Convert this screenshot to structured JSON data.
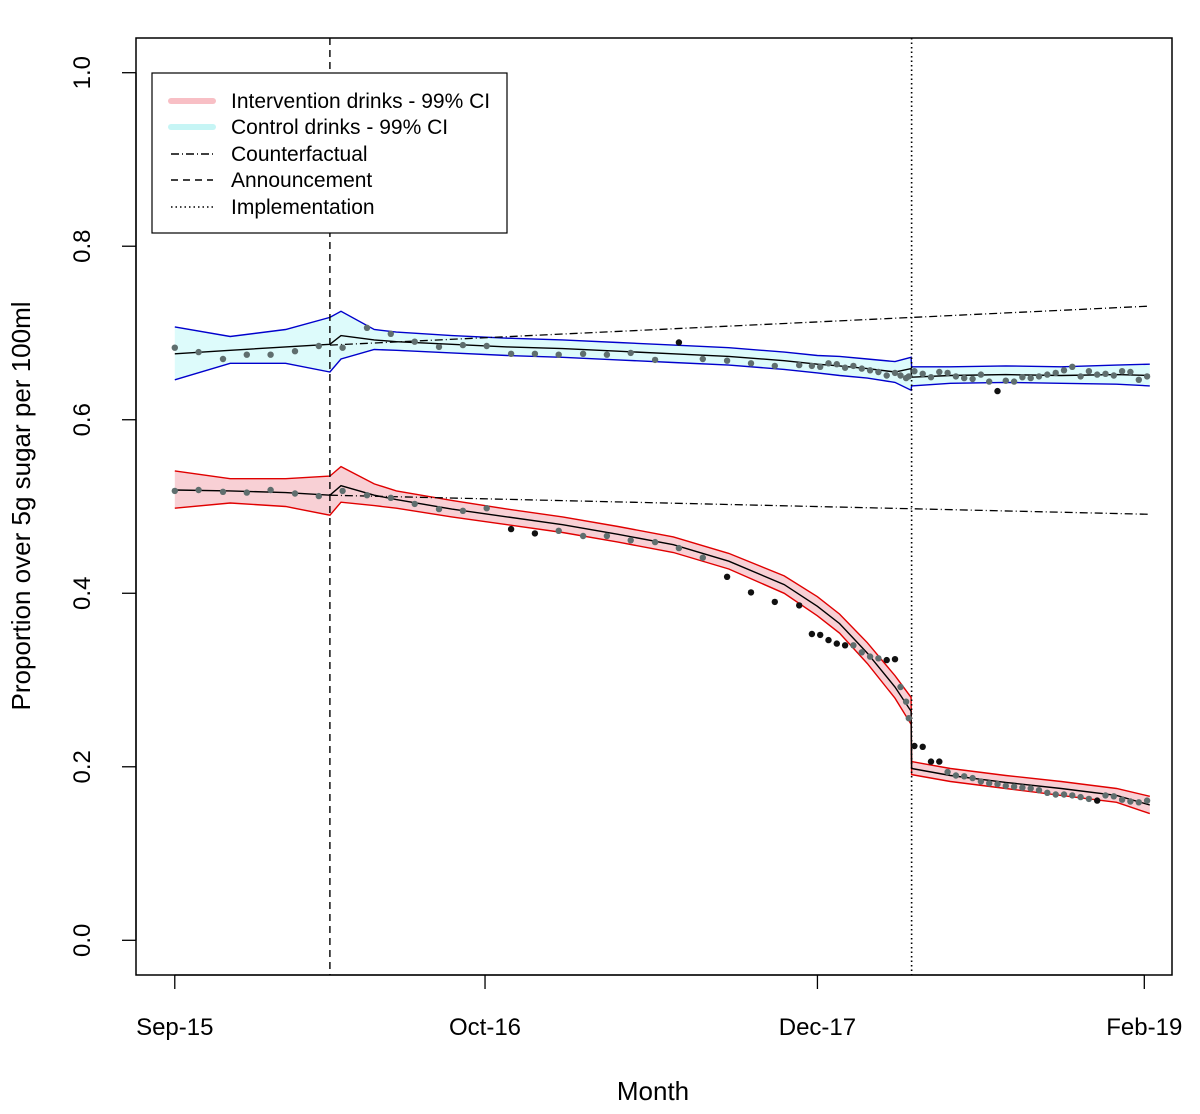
{
  "chart_data": {
    "type": "line",
    "xlabel": "Month",
    "ylabel": "Proportion over 5g sugar per 100ml",
    "x_ticks": [
      "Sep-15",
      "Oct-16",
      "Dec-17",
      "Feb-19"
    ],
    "x_tick_weeks": [
      0,
      56,
      116,
      175
    ],
    "xlim_weeks": [
      -7,
      180
    ],
    "ylim": [
      -0.04,
      1.04
    ],
    "y_ticks": [
      "0.0",
      "0.2",
      "0.4",
      "0.6",
      "0.8",
      "1.0"
    ],
    "y_tick_values": [
      0,
      0.2,
      0.4,
      0.6,
      0.8,
      1.0
    ],
    "announcement_week": 28,
    "implementation_week": 133,
    "legend": {
      "position": "top-left",
      "entries": [
        {
          "label": "Intervention drinks - 99% CI",
          "style": "band",
          "color": "#f8bfc5"
        },
        {
          "label": "Control drinks - 99% CI",
          "style": "band",
          "color": "#c6f5f5"
        },
        {
          "label": "Counterfactual",
          "style": "dotdash"
        },
        {
          "label": "Announcement",
          "style": "dashed"
        },
        {
          "label": "Implementation",
          "style": "dotted"
        }
      ]
    },
    "colors": {
      "intervention_fill": "#f8d0d5",
      "intervention_line": "#e00000",
      "control_fill": "#ddfbfb",
      "control_line": "#0000cc",
      "fit_line": "#000000",
      "observed_points": "#111111",
      "overlap_points": "#5f6e6e"
    },
    "series": [
      {
        "name": "Intervention drinks - 99% CI",
        "kind": "fitted_with_band",
        "x": [
          0,
          10,
          20,
          28,
          30,
          36,
          40,
          50,
          60,
          70,
          80,
          90,
          100,
          110,
          116,
          120,
          125,
          130,
          132.9,
          133,
          140,
          150,
          160,
          170,
          176
        ],
        "fit": [
          0.519,
          0.518,
          0.516,
          0.513,
          0.524,
          0.513,
          0.508,
          0.497,
          0.488,
          0.479,
          0.468,
          0.456,
          0.437,
          0.41,
          0.385,
          0.365,
          0.331,
          0.292,
          0.264,
          0.198,
          0.19,
          0.182,
          0.175,
          0.167,
          0.156
        ],
        "lower": [
          0.498,
          0.504,
          0.5,
          0.49,
          0.505,
          0.501,
          0.498,
          0.488,
          0.479,
          0.47,
          0.459,
          0.447,
          0.428,
          0.4,
          0.374,
          0.354,
          0.319,
          0.279,
          0.249,
          0.191,
          0.183,
          0.175,
          0.167,
          0.159,
          0.146
        ],
        "upper": [
          0.541,
          0.532,
          0.532,
          0.535,
          0.546,
          0.526,
          0.518,
          0.507,
          0.497,
          0.488,
          0.477,
          0.465,
          0.446,
          0.42,
          0.396,
          0.376,
          0.343,
          0.305,
          0.28,
          0.206,
          0.198,
          0.19,
          0.183,
          0.175,
          0.166
        ]
      },
      {
        "name": "Control drinks - 99% CI",
        "kind": "fitted_with_band",
        "x": [
          0,
          10,
          20,
          28,
          30,
          36,
          40,
          50,
          60,
          70,
          80,
          90,
          100,
          110,
          116,
          120,
          125,
          130,
          132.9,
          133,
          140,
          150,
          160,
          170,
          176
        ],
        "fit": [
          0.676,
          0.68,
          0.684,
          0.687,
          0.697,
          0.692,
          0.69,
          0.687,
          0.684,
          0.682,
          0.679,
          0.676,
          0.673,
          0.668,
          0.664,
          0.662,
          0.659,
          0.655,
          0.659,
          0.649,
          0.651,
          0.652,
          0.651,
          0.652,
          0.651
        ],
        "lower": [
          0.646,
          0.665,
          0.665,
          0.655,
          0.67,
          0.681,
          0.68,
          0.677,
          0.674,
          0.672,
          0.669,
          0.666,
          0.663,
          0.658,
          0.654,
          0.651,
          0.648,
          0.643,
          0.634,
          0.639,
          0.642,
          0.643,
          0.642,
          0.641,
          0.639
        ],
        "upper": [
          0.707,
          0.696,
          0.704,
          0.718,
          0.725,
          0.704,
          0.701,
          0.697,
          0.694,
          0.692,
          0.689,
          0.686,
          0.683,
          0.678,
          0.674,
          0.673,
          0.67,
          0.667,
          0.672,
          0.661,
          0.661,
          0.662,
          0.661,
          0.663,
          0.664
        ]
      },
      {
        "name": "Counterfactual",
        "kind": "dotdash_line",
        "segments": [
          {
            "x": [
              28,
              176
            ],
            "y": [
              0.513,
              0.491
            ]
          },
          {
            "x": [
              28,
              176
            ],
            "y": [
              0.686,
              0.731
            ]
          }
        ]
      },
      {
        "name": "Intervention observed",
        "kind": "points",
        "x": [
          0,
          4.3,
          8.7,
          13,
          17.3,
          21.7,
          26,
          30.3,
          34.7,
          39,
          43.3,
          47.7,
          52,
          56.3,
          60.7,
          65,
          69.3,
          73.7,
          78,
          82.3,
          86.7,
          91,
          95.3,
          99.7,
          104,
          108.3,
          112.7,
          115,
          116.5,
          118,
          119.5,
          121,
          122.5,
          124,
          125.5,
          127,
          128.5,
          130,
          131,
          132,
          132.5,
          133.5,
          135,
          136.5,
          138,
          139.5,
          141,
          142.5,
          144,
          145.5,
          147,
          148.5,
          150,
          151.5,
          153,
          154.5,
          156,
          157.5,
          159,
          160.5,
          162,
          163.5,
          165,
          166.5,
          168,
          169.5,
          171,
          172.5,
          174,
          175.5
        ],
        "y": [
          0.518,
          0.519,
          0.517,
          0.516,
          0.519,
          0.515,
          0.512,
          0.518,
          0.513,
          0.51,
          0.503,
          0.497,
          0.495,
          0.498,
          0.474,
          0.469,
          0.472,
          0.466,
          0.466,
          0.461,
          0.459,
          0.452,
          0.441,
          0.419,
          0.401,
          0.39,
          0.386,
          0.353,
          0.352,
          0.346,
          0.342,
          0.34,
          0.34,
          0.332,
          0.327,
          0.325,
          0.323,
          0.324,
          0.292,
          0.275,
          0.256,
          0.224,
          0.223,
          0.206,
          0.206,
          0.194,
          0.19,
          0.189,
          0.187,
          0.183,
          0.181,
          0.18,
          0.178,
          0.177,
          0.176,
          0.175,
          0.173,
          0.17,
          0.168,
          0.168,
          0.167,
          0.165,
          0.163,
          0.161,
          0.167,
          0.166,
          0.162,
          0.16,
          0.159,
          0.161
        ]
      },
      {
        "name": "Control observed",
        "kind": "points",
        "x": [
          0,
          4.3,
          8.7,
          13,
          17.3,
          21.7,
          26,
          30.3,
          34.7,
          39,
          43.3,
          47.7,
          52,
          56.3,
          60.7,
          65,
          69.3,
          73.7,
          78,
          82.3,
          86.7,
          91,
          95.3,
          99.7,
          104,
          108.3,
          112.7,
          115,
          116.5,
          118,
          119.5,
          121,
          122.5,
          124,
          125.5,
          127,
          128.5,
          130,
          131,
          132,
          132.5,
          133.5,
          135,
          136.5,
          138,
          139.5,
          141,
          142.5,
          144,
          145.5,
          147,
          148.5,
          150,
          151.5,
          153,
          154.5,
          156,
          157.5,
          159,
          160.5,
          162,
          163.5,
          165,
          166.5,
          168,
          169.5,
          171,
          172.5,
          174,
          175.5
        ],
        "y": [
          0.683,
          0.678,
          0.67,
          0.675,
          0.675,
          0.679,
          0.685,
          0.683,
          0.706,
          0.699,
          0.69,
          0.684,
          0.686,
          0.685,
          0.676,
          0.676,
          0.675,
          0.676,
          0.675,
          0.677,
          0.669,
          0.689,
          0.67,
          0.668,
          0.665,
          0.662,
          0.663,
          0.662,
          0.661,
          0.665,
          0.664,
          0.66,
          0.662,
          0.659,
          0.657,
          0.655,
          0.651,
          0.654,
          0.651,
          0.648,
          0.65,
          0.656,
          0.653,
          0.649,
          0.655,
          0.654,
          0.65,
          0.648,
          0.647,
          0.652,
          0.644,
          0.633,
          0.645,
          0.644,
          0.649,
          0.648,
          0.65,
          0.652,
          0.654,
          0.657,
          0.661,
          0.65,
          0.656,
          0.652,
          0.653,
          0.651,
          0.656,
          0.655,
          0.646,
          0.65
        ]
      }
    ]
  }
}
